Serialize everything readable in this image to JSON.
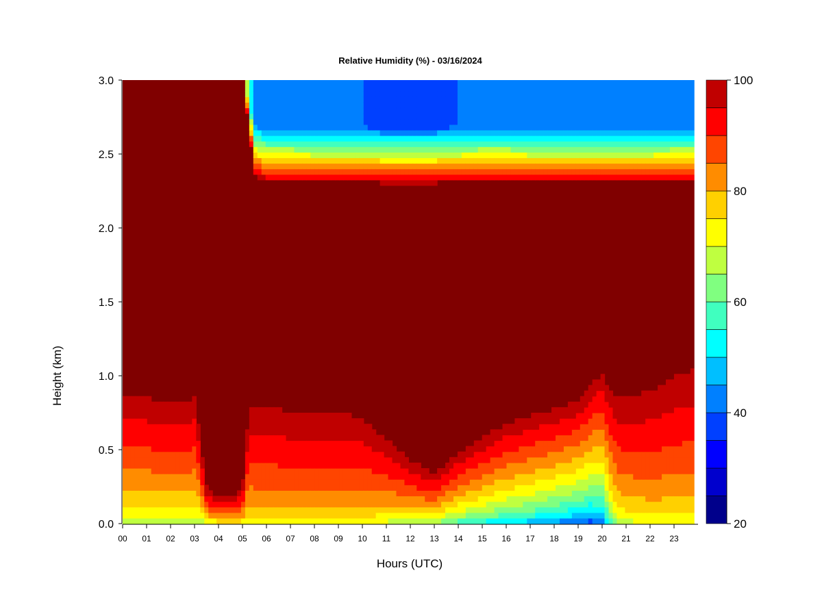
{
  "chart_data": {
    "type": "heatmap",
    "title": "Relative Humidity (%) - 03/16/2024",
    "xlabel": "Hours (UTC)",
    "ylabel": "Height (km)",
    "x_ticks": [
      "00",
      "01",
      "02",
      "03",
      "04",
      "05",
      "06",
      "07",
      "08",
      "09",
      "10",
      "11",
      "12",
      "13",
      "14",
      "15",
      "16",
      "17",
      "18",
      "19",
      "20",
      "21",
      "22",
      "23"
    ],
    "xlim": [
      0,
      23.85
    ],
    "y_ticks": [
      "0.0",
      "0.5",
      "1.0",
      "1.5",
      "2.0",
      "2.5",
      "3.0"
    ],
    "ylim": [
      0.0,
      3.0
    ],
    "colorbar": {
      "label_ticks": [
        "20",
        "40",
        "60",
        "80",
        "100"
      ],
      "range": [
        20,
        100
      ],
      "levels": [
        20,
        25,
        30,
        35,
        40,
        45,
        50,
        55,
        60,
        65,
        70,
        75,
        80,
        85,
        90,
        95,
        100
      ],
      "colors": [
        "#00008b",
        "#0000cd",
        "#0000ff",
        "#0040ff",
        "#0080ff",
        "#00bfff",
        "#00ffff",
        "#40ffbf",
        "#80ff80",
        "#bfff40",
        "#ffff00",
        "#ffd000",
        "#ff8c00",
        "#ff4500",
        "#ff0000",
        "#c00000",
        "#800000"
      ]
    },
    "profiles": {
      "hours": [
        0,
        0.5,
        1,
        1.5,
        2,
        2.5,
        3,
        3.5,
        4,
        4.5,
        5,
        5.25,
        5.5,
        6,
        7,
        8,
        9,
        10,
        11,
        12,
        13,
        14,
        15,
        16,
        17,
        18,
        19,
        19.5,
        20,
        20.3,
        20.6,
        21,
        22,
        23,
        23.85
      ],
      "upper_transition_km": [
        3.0,
        3.0,
        3.0,
        3.0,
        3.0,
        3.0,
        3.0,
        3.0,
        3.0,
        3.0,
        3.0,
        2.7,
        2.35,
        2.3,
        2.3,
        2.3,
        2.3,
        2.3,
        2.3,
        2.3,
        2.3,
        2.3,
        2.3,
        2.3,
        2.3,
        2.3,
        2.3,
        2.3,
        2.3,
        2.3,
        2.3,
        2.3,
        2.3,
        2.3,
        2.3
      ],
      "upper_dry_rh": [
        100,
        100,
        100,
        100,
        100,
        100,
        100,
        100,
        100,
        100,
        100,
        60,
        42,
        42,
        42,
        40,
        40,
        40,
        38,
        38,
        38,
        40,
        42,
        42,
        40,
        40,
        40,
        40,
        40,
        40,
        40,
        40,
        40,
        42,
        42
      ],
      "lower_moist_top_km": [
        0.9,
        0.9,
        0.9,
        0.85,
        0.85,
        0.85,
        0.9,
        0.25,
        0.2,
        0.2,
        0.25,
        0.8,
        0.85,
        0.85,
        0.8,
        0.8,
        0.8,
        0.75,
        0.6,
        0.45,
        0.35,
        0.5,
        0.6,
        0.7,
        0.75,
        0.8,
        0.85,
        0.95,
        1.05,
        0.95,
        0.9,
        0.9,
        0.95,
        1.05,
        1.1
      ],
      "surface_rh": [
        62,
        62,
        62,
        62,
        62,
        62,
        62,
        62,
        68,
        70,
        68,
        68,
        70,
        70,
        70,
        70,
        70,
        68,
        65,
        62,
        58,
        52,
        48,
        45,
        42,
        38,
        34,
        32,
        35,
        50,
        62,
        65,
        68,
        68,
        68
      ]
    }
  }
}
